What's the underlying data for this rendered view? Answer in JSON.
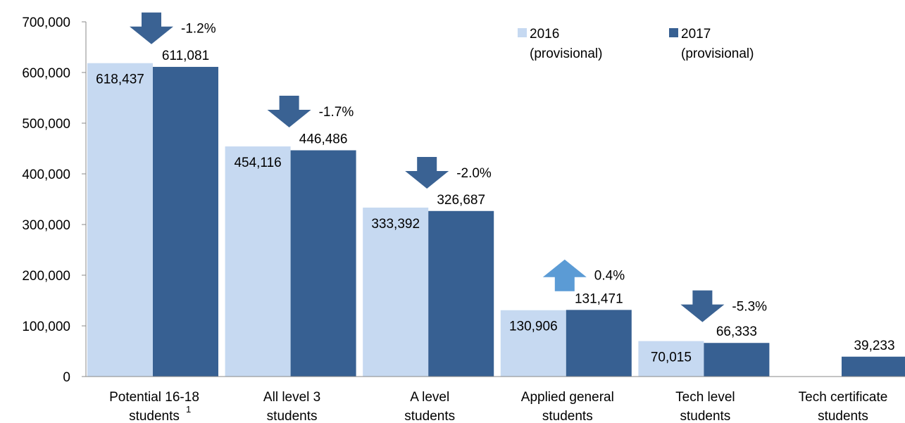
{
  "chart_data": {
    "type": "bar",
    "categories": [
      [
        "Potential 16-18",
        "students"
      ],
      [
        "All level 3",
        "students"
      ],
      [
        "A level",
        "students"
      ],
      [
        "Applied general",
        "students"
      ],
      [
        "Tech level",
        "students"
      ],
      [
        "Tech certificate",
        "students"
      ]
    ],
    "footnotes": [
      "1",
      null,
      null,
      null,
      null,
      null
    ],
    "series": [
      {
        "name": "2016 (provisional)",
        "color": "#c6d9f1",
        "values": [
          618437,
          454116,
          333392,
          130906,
          70015,
          null
        ],
        "value_labels": [
          "618,437",
          "454,116",
          "333,392",
          "130,906",
          "70,015",
          null
        ]
      },
      {
        "name": "2017 (provisional)",
        "color": "#376092",
        "values": [
          611081,
          446486,
          326687,
          131471,
          66333,
          39233
        ],
        "value_labels": [
          "611,081",
          "446,486",
          "326,687",
          "131,471",
          "66,333",
          "39,233"
        ]
      }
    ],
    "changes": [
      {
        "value": -1.2,
        "label": "-1.2%"
      },
      {
        "value": -1.7,
        "label": "-1.7%"
      },
      {
        "value": -2.0,
        "label": "-2.0%"
      },
      {
        "value": 0.4,
        "label": "0.4%"
      },
      {
        "value": -5.3,
        "label": "-5.3%"
      },
      null
    ],
    "change_colors": {
      "down": "#3a6293",
      "up": "#5b9bd5"
    },
    "ylim": [
      0,
      700000
    ],
    "yticks": [
      0,
      {
        "value": 100000,
        "label": "100,000"
      },
      {
        "value": 200000,
        "label": "200,000"
      },
      {
        "value": 300000,
        "label": "300,000"
      },
      {
        "value": 400000,
        "label": "400,000"
      },
      {
        "value": 500000,
        "label": "500,000"
      },
      {
        "value": 600000,
        "label": "600,000"
      },
      {
        "value": 700000,
        "label": "700,000"
      }
    ],
    "legend": "top-right"
  }
}
